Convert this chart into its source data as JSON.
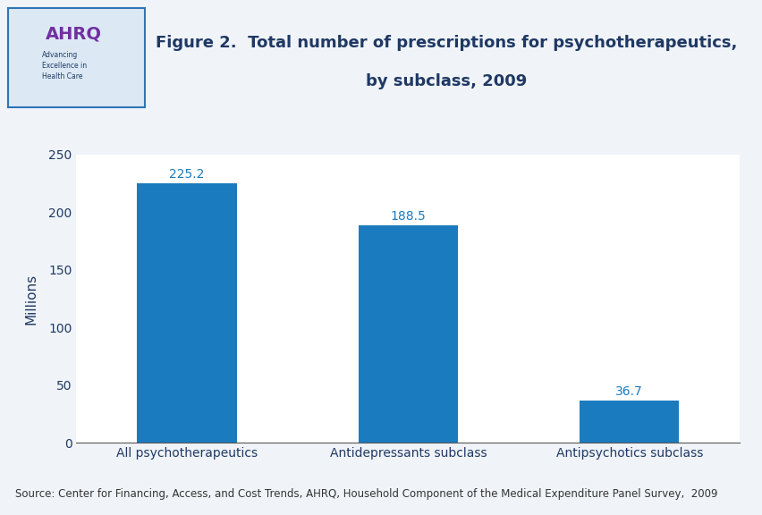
{
  "title_line1": "Figure 2.  Total number of prescriptions for psychotherapeutics,",
  "title_line2": "by subclass, 2009",
  "categories": [
    "All psychotherapeutics",
    "Antidepressants subclass",
    "Antipsychotics subclass"
  ],
  "values": [
    225.2,
    188.5,
    36.7
  ],
  "bar_color": "#1a7bbf",
  "ylabel": "Millions",
  "ylim": [
    0,
    250
  ],
  "yticks": [
    0,
    50,
    100,
    150,
    200,
    250
  ],
  "source_text": "Source: Center for Financing, Access, and Cost Trends, AHRQ, Household Component of the Medical Expenditure Panel Survey,  2009",
  "title_color": "#1f3864",
  "label_color": "#1a7bbf",
  "ylabel_color": "#1f3864",
  "axis_label_color": "#1f3864",
  "tick_label_color": "#1f3864",
  "background_color": "#f0f4f8",
  "plot_bg_color": "#ffffff",
  "header_line_color": "#1f3864",
  "bar_width": 0.45,
  "title_fontsize": 13,
  "label_fontsize": 10,
  "tick_fontsize": 10,
  "ylabel_fontsize": 11,
  "source_fontsize": 8.5
}
